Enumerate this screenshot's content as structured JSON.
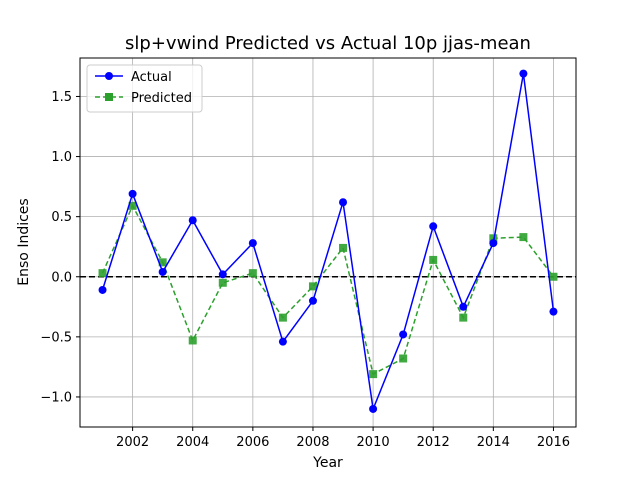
{
  "chart_data": {
    "type": "line",
    "title": "slp+vwind Predicted vs Actual 10p jjas-mean",
    "xlabel": "Year",
    "ylabel": "Enso Indices",
    "x": [
      2001,
      2002,
      2003,
      2004,
      2005,
      2006,
      2007,
      2008,
      2009,
      2010,
      2011,
      2012,
      2013,
      2014,
      2015,
      2016
    ],
    "xlim": [
      2000.25,
      2016.75
    ],
    "ylim": [
      -1.25,
      1.82
    ],
    "xticks": [
      2002,
      2004,
      2006,
      2008,
      2010,
      2012,
      2014,
      2016
    ],
    "yticks": [
      -1.0,
      -0.5,
      0.0,
      0.5,
      1.0,
      1.5
    ],
    "xtick_labels": [
      "2002",
      "2004",
      "2006",
      "2008",
      "2010",
      "2012",
      "2014",
      "2016"
    ],
    "ytick_labels": [
      "−1.0",
      "−0.5",
      "0.0",
      "0.5",
      "1.0",
      "1.5"
    ],
    "grid": true,
    "legend_position": "top-left",
    "reference_line": {
      "y": 0.0,
      "color": "#000000",
      "style": "dashed"
    },
    "series": [
      {
        "name": "Actual",
        "color": "#0000ff",
        "marker": "circle",
        "line_style": "solid",
        "values": [
          -0.11,
          0.69,
          0.04,
          0.47,
          0.02,
          0.28,
          -0.54,
          -0.2,
          0.62,
          -1.1,
          -0.48,
          0.42,
          -0.25,
          0.28,
          1.69,
          -0.29
        ]
      },
      {
        "name": "Predicted",
        "color": "#2ca02c",
        "marker": "square",
        "line_style": "dashed",
        "values": [
          0.03,
          0.59,
          0.12,
          -0.53,
          -0.05,
          0.03,
          -0.34,
          -0.08,
          0.24,
          -0.81,
          -0.68,
          0.14,
          -0.34,
          0.32,
          0.33,
          0.0
        ]
      }
    ]
  }
}
